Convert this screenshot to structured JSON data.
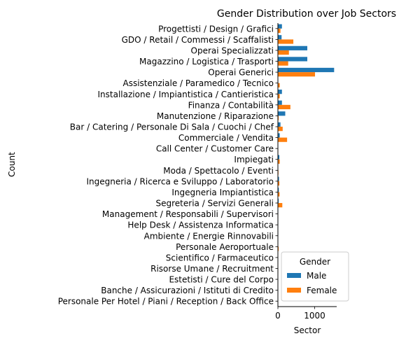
{
  "chart_data": {
    "type": "bar",
    "orientation": "horizontal",
    "title": "Gender Distribution over Job Sectors",
    "xlabel": "Sector",
    "ylabel": "Count",
    "xlim": [
      0,
      1600
    ],
    "xticks": [
      0,
      1000
    ],
    "grid": false,
    "legend": {
      "title": "Gender",
      "placement": "lower-right"
    },
    "categories": [
      "Progettisti / Design / Grafici",
      "GDO / Retail / Commessi / Scaffalisti",
      "Operai Specializzati",
      "Magazzino / Logistica / Trasporti",
      "Operai Generici",
      "Assistenziale / Paramedico / Tecnico",
      "Installazione / Impiantistica / Cantieristica",
      "Finanza / Contabilità",
      "Manutenzione / Riparazione",
      "Bar / Catering / Personale Di Sala / Cuochi / Chef",
      "Commerciale / Vendita",
      "Call Center / Customer Care",
      "Impiegati",
      "Moda / Spettacolo / Eventi",
      "Ingegneria / Ricerca e Sviluppo / Laboratorio",
      "Ingegneria Impiantistica",
      "Segreteria / Servizi Generali",
      "Management / Responsabili / Supervisori",
      "Help Desk / Assistenza Informatica",
      "Ambiente / Energie Rinnovabili",
      "Personale Aeroportuale",
      "Scientifico / Farmaceutico",
      "Risorse Umane / Recruitment",
      "Estetisti / Cure del Corpo",
      "Banche / Assicurazioni / Istituti di Credito",
      "Personale Per Hotel / Piani / Reception / Back Office"
    ],
    "series": [
      {
        "name": "Male",
        "color": "#1f77b4",
        "values": [
          110,
          100,
          800,
          800,
          1530,
          10,
          110,
          110,
          200,
          70,
          50,
          10,
          40,
          10,
          30,
          25,
          20,
          10,
          10,
          10,
          5,
          5,
          5,
          5,
          5,
          5
        ]
      },
      {
        "name": "Female",
        "color": "#ff7f0e",
        "values": [
          70,
          420,
          300,
          280,
          1010,
          50,
          50,
          340,
          20,
          130,
          250,
          10,
          50,
          15,
          40,
          45,
          120,
          10,
          5,
          5,
          20,
          5,
          10,
          5,
          5,
          5
        ]
      }
    ]
  }
}
